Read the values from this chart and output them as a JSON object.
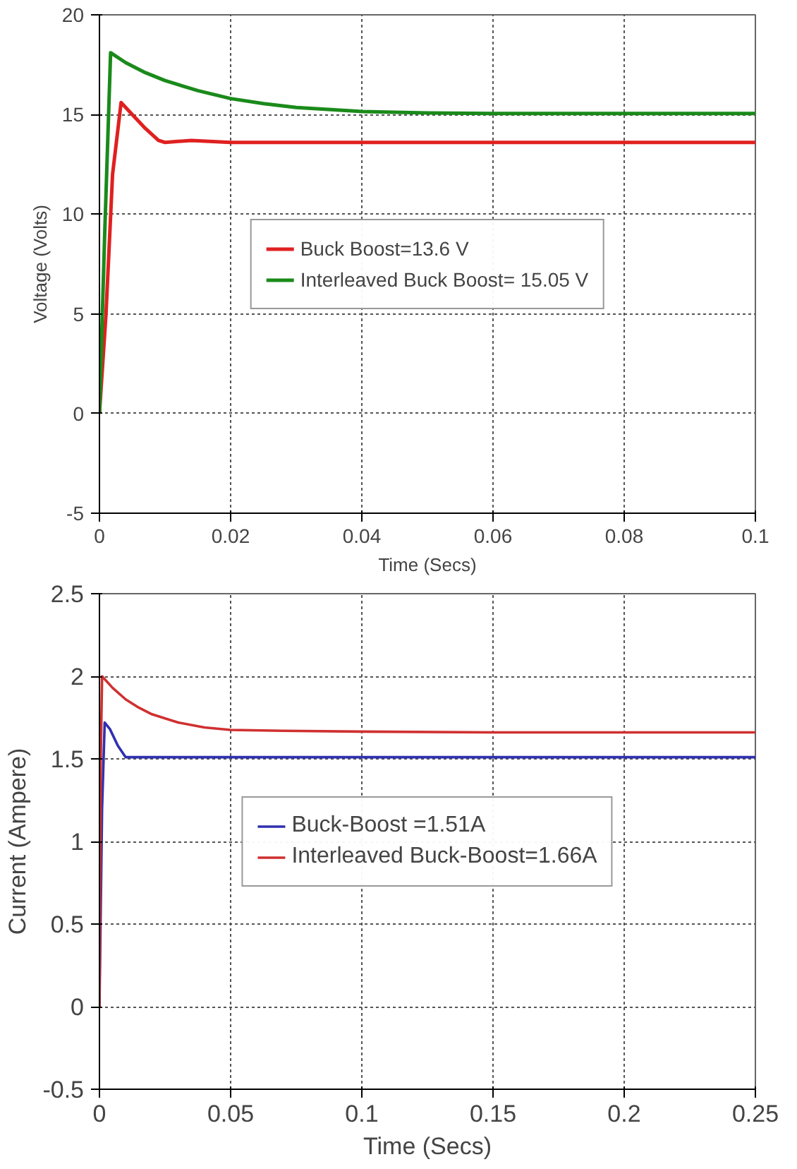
{
  "chart_data": [
    {
      "type": "line",
      "xlabel": "Time (Secs)",
      "ylabel": "Voltage (Volts)",
      "xlim": [
        0,
        0.1
      ],
      "ylim": [
        -5,
        20
      ],
      "xticks": [
        0,
        0.02,
        0.04,
        0.06,
        0.08,
        0.1
      ],
      "yticks": [
        -5,
        0,
        5,
        10,
        15,
        20
      ],
      "grid": true,
      "legend": "center",
      "line_style": "solid",
      "series": [
        {
          "name": "Buck Boost=13.6 V",
          "color": "#e02020",
          "x": [
            0,
            0.001,
            0.002,
            0.0033,
            0.005,
            0.007,
            0.009,
            0.01,
            0.012,
            0.014,
            0.02,
            0.04,
            0.06,
            0.08,
            0.1
          ],
          "values": [
            0,
            5,
            12,
            15.6,
            15.0,
            14.3,
            13.7,
            13.6,
            13.65,
            13.7,
            13.6,
            13.6,
            13.6,
            13.6,
            13.6
          ]
        },
        {
          "name": "Interleaved Buck Boost= 15.05 V",
          "color": "#1a8a1a",
          "x": [
            0,
            0.0008,
            0.0017,
            0.004,
            0.007,
            0.01,
            0.015,
            0.02,
            0.025,
            0.03,
            0.04,
            0.05,
            0.06,
            0.08,
            0.1
          ],
          "values": [
            0,
            9,
            18.1,
            17.6,
            17.1,
            16.7,
            16.2,
            15.8,
            15.55,
            15.35,
            15.15,
            15.08,
            15.05,
            15.05,
            15.05
          ]
        }
      ]
    },
    {
      "type": "line",
      "xlabel": "Time (Secs)",
      "ylabel": "Current (Ampere)",
      "xlim": [
        0,
        0.25
      ],
      "ylim": [
        -0.5,
        2.5
      ],
      "xticks": [
        0,
        0.05,
        0.1,
        0.15,
        0.2,
        0.25
      ],
      "yticks": [
        -0.5,
        0,
        0.5,
        1,
        1.5,
        2,
        2.5
      ],
      "grid": true,
      "legend": "center",
      "line_style": "solid",
      "series": [
        {
          "name": "Buck-Boost =1.51A",
          "color": "#3030b0",
          "x": [
            0,
            0.001,
            0.002,
            0.004,
            0.007,
            0.01,
            0.05,
            0.1,
            0.15,
            0.2,
            0.25
          ],
          "values": [
            0,
            1.2,
            1.72,
            1.68,
            1.58,
            1.51,
            1.51,
            1.51,
            1.51,
            1.51,
            1.51
          ]
        },
        {
          "name": "Interleaved Buck-Boost=1.66A",
          "color": "#d03030",
          "x": [
            0,
            0.0005,
            0.001,
            0.005,
            0.01,
            0.015,
            0.02,
            0.03,
            0.04,
            0.05,
            0.07,
            0.1,
            0.15,
            0.2,
            0.25
          ],
          "values": [
            0,
            1.5,
            2.0,
            1.93,
            1.86,
            1.81,
            1.77,
            1.72,
            1.69,
            1.675,
            1.67,
            1.665,
            1.66,
            1.66,
            1.66
          ]
        }
      ]
    }
  ]
}
